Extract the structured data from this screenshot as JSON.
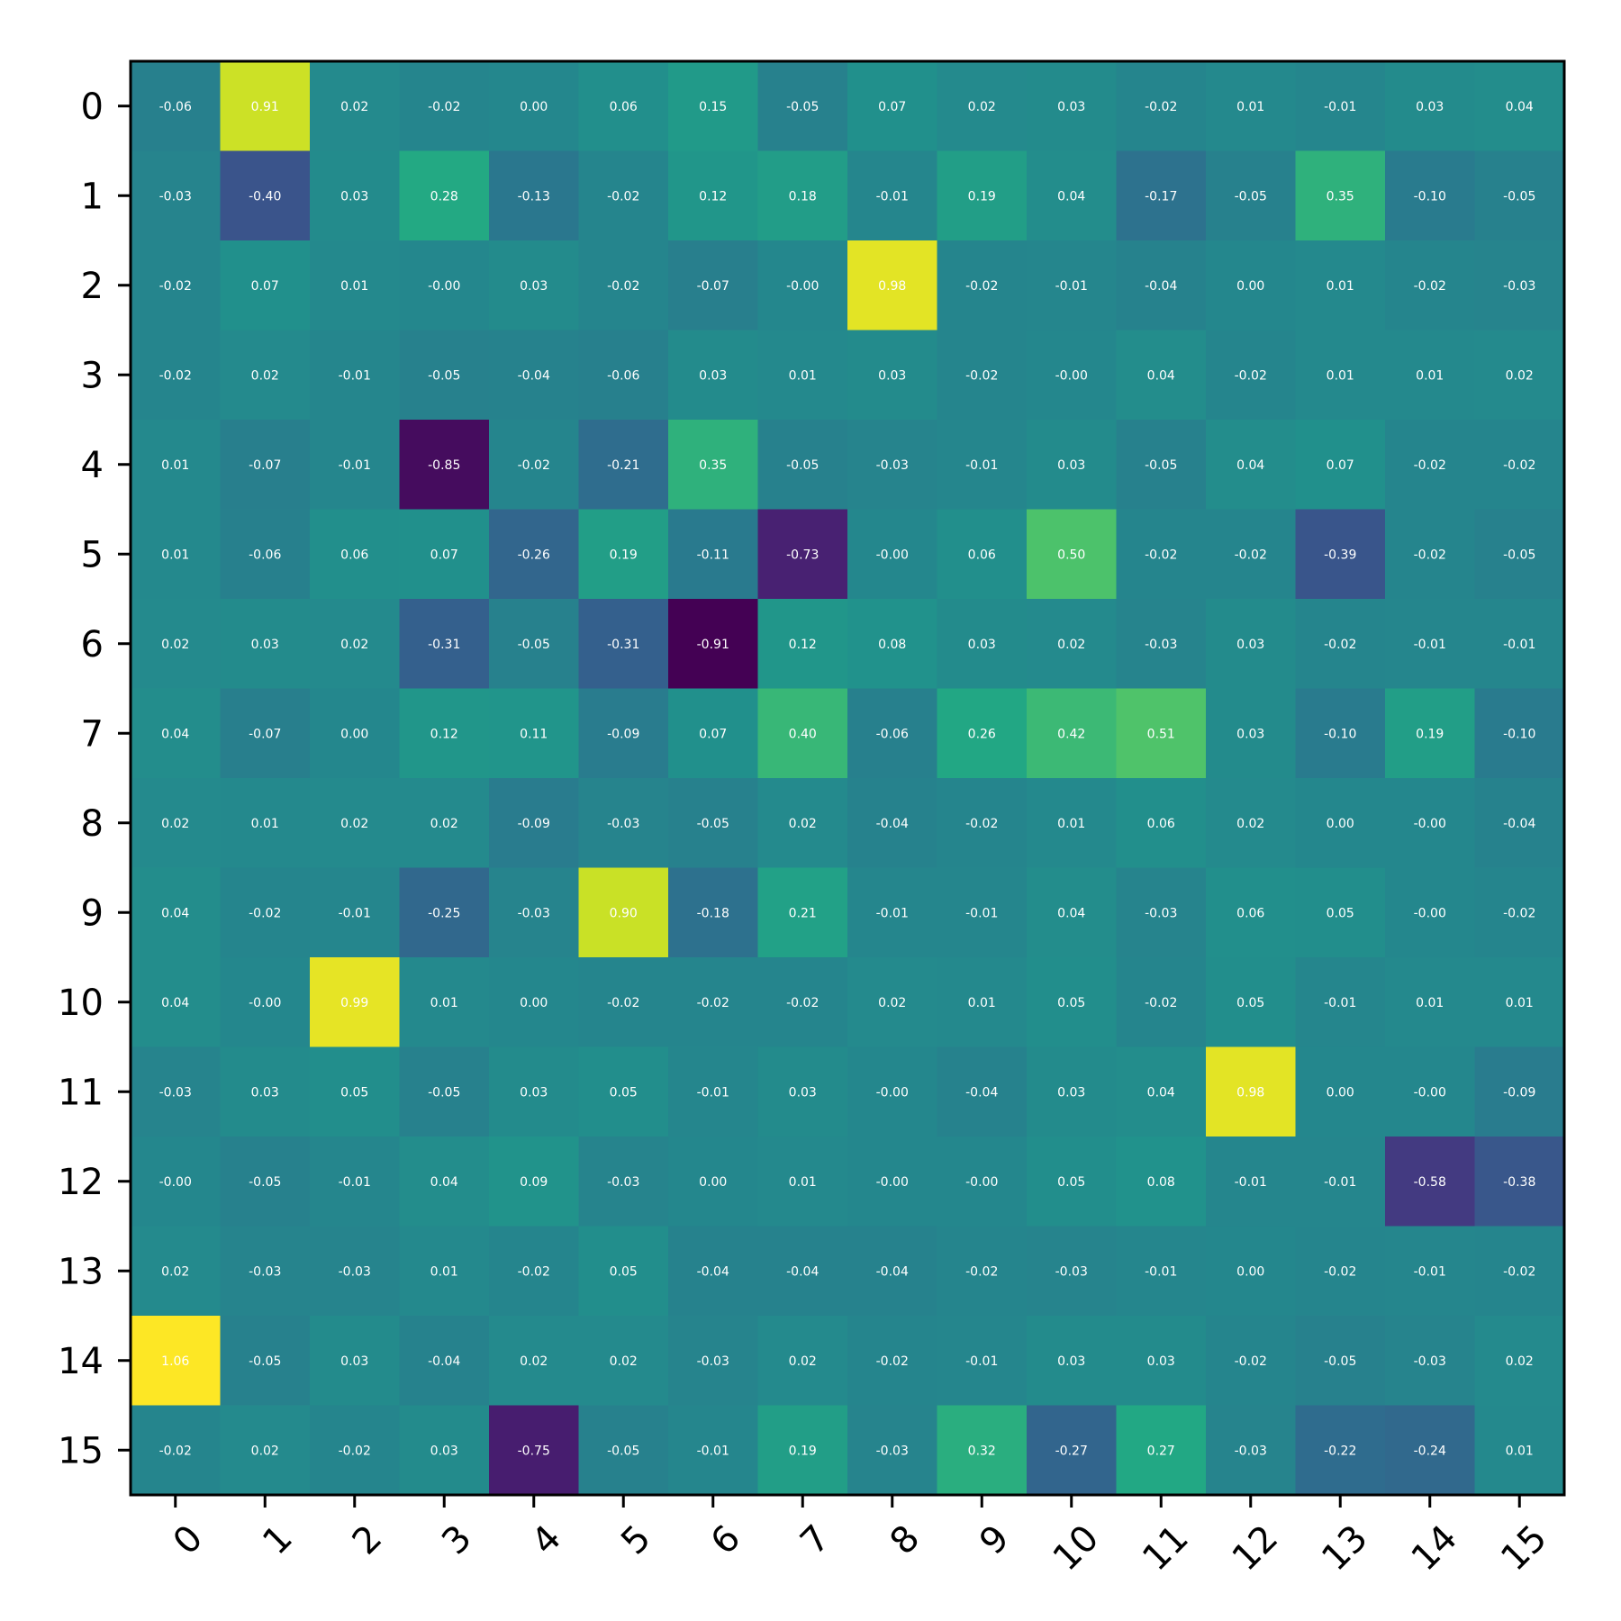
{
  "chart_data": {
    "type": "heatmap",
    "title": "",
    "xlabel": "",
    "ylabel": "",
    "colormap": "viridis",
    "value_range": [
      -0.91,
      1.06
    ],
    "x_ticks": [
      "0",
      "1",
      "2",
      "3",
      "4",
      "5",
      "6",
      "7",
      "8",
      "9",
      "10",
      "11",
      "12",
      "13",
      "14",
      "15"
    ],
    "y_ticks": [
      "0",
      "1",
      "2",
      "3",
      "4",
      "5",
      "6",
      "7",
      "8",
      "9",
      "10",
      "11",
      "12",
      "13",
      "14",
      "15"
    ],
    "values": [
      [
        -0.06,
        0.91,
        0.02,
        -0.02,
        0.0,
        0.06,
        0.15,
        -0.05,
        0.07,
        0.02,
        0.03,
        -0.02,
        0.01,
        -0.01,
        0.03,
        0.04
      ],
      [
        -0.03,
        -0.4,
        0.03,
        0.28,
        -0.13,
        -0.02,
        0.12,
        0.18,
        -0.01,
        0.19,
        0.04,
        -0.17,
        -0.05,
        0.35,
        -0.1,
        -0.05
      ],
      [
        -0.02,
        0.07,
        0.01,
        -0.0,
        0.03,
        -0.02,
        -0.07,
        -0.0,
        0.98,
        -0.02,
        -0.01,
        -0.04,
        0.0,
        0.01,
        -0.02,
        -0.03
      ],
      [
        -0.02,
        0.02,
        -0.01,
        -0.05,
        -0.04,
        -0.06,
        0.03,
        0.01,
        0.03,
        -0.02,
        -0.0,
        0.04,
        -0.02,
        0.01,
        0.01,
        0.02
      ],
      [
        0.01,
        -0.07,
        -0.01,
        -0.85,
        -0.02,
        -0.21,
        0.35,
        -0.05,
        -0.03,
        -0.01,
        0.03,
        -0.05,
        0.04,
        0.07,
        -0.02,
        -0.02
      ],
      [
        0.01,
        -0.06,
        0.06,
        0.07,
        -0.26,
        0.19,
        -0.11,
        -0.73,
        -0.0,
        0.06,
        0.5,
        -0.02,
        -0.02,
        -0.39,
        -0.02,
        -0.05
      ],
      [
        0.02,
        0.03,
        0.02,
        -0.31,
        -0.05,
        -0.31,
        -0.91,
        0.12,
        0.08,
        0.03,
        0.02,
        -0.03,
        0.03,
        -0.02,
        -0.01,
        -0.01
      ],
      [
        0.04,
        -0.07,
        0.0,
        0.12,
        0.11,
        -0.09,
        0.07,
        0.4,
        -0.06,
        0.26,
        0.42,
        0.51,
        0.03,
        -0.1,
        0.19,
        -0.1
      ],
      [
        0.02,
        0.01,
        0.02,
        0.02,
        -0.09,
        -0.03,
        -0.05,
        0.02,
        -0.04,
        -0.02,
        0.01,
        0.06,
        0.02,
        0.0,
        -0.0,
        -0.04
      ],
      [
        0.04,
        -0.02,
        -0.01,
        -0.25,
        -0.03,
        0.9,
        -0.18,
        0.21,
        -0.01,
        -0.01,
        0.04,
        -0.03,
        0.06,
        0.05,
        -0.0,
        -0.02
      ],
      [
        0.04,
        -0.0,
        0.99,
        0.01,
        0.0,
        -0.02,
        -0.02,
        -0.02,
        0.02,
        0.01,
        0.05,
        -0.02,
        0.05,
        -0.01,
        0.01,
        0.01
      ],
      [
        -0.03,
        0.03,
        0.05,
        -0.05,
        0.03,
        0.05,
        -0.01,
        0.03,
        -0.0,
        -0.04,
        0.03,
        0.04,
        0.98,
        0.0,
        -0.0,
        -0.09
      ],
      [
        -0.0,
        -0.05,
        -0.01,
        0.04,
        0.09,
        -0.03,
        0.0,
        0.01,
        -0.0,
        -0.0,
        0.05,
        0.08,
        -0.01,
        -0.01,
        -0.58,
        -0.38
      ],
      [
        0.02,
        -0.03,
        -0.03,
        0.01,
        -0.02,
        0.05,
        -0.04,
        -0.04,
        -0.04,
        -0.02,
        -0.03,
        -0.01,
        0.0,
        -0.02,
        -0.01,
        -0.02
      ],
      [
        1.06,
        -0.05,
        0.03,
        -0.04,
        0.02,
        0.02,
        -0.03,
        0.02,
        -0.02,
        -0.01,
        0.03,
        0.03,
        -0.02,
        -0.05,
        -0.03,
        0.02
      ],
      [
        -0.02,
        0.02,
        -0.02,
        0.03,
        -0.75,
        -0.05,
        -0.01,
        0.19,
        -0.03,
        0.32,
        -0.27,
        0.27,
        -0.03,
        -0.22,
        -0.24,
        0.01
      ]
    ],
    "grid": false,
    "legend": "none"
  }
}
